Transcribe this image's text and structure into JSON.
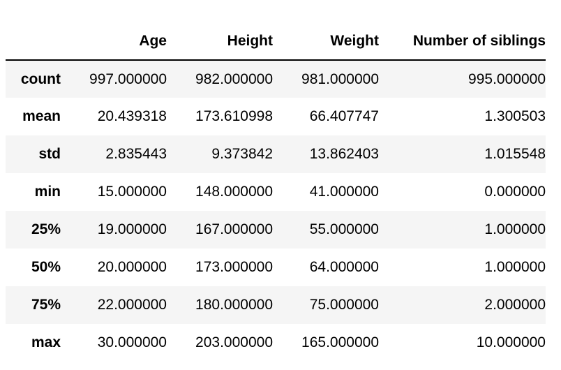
{
  "table": {
    "index_header": "",
    "columns": [
      "Age",
      "Height",
      "Weight",
      "Number of siblings"
    ],
    "rows": [
      {
        "label": "count",
        "values": [
          "997.000000",
          "982.000000",
          "981.000000",
          "995.000000"
        ]
      },
      {
        "label": "mean",
        "values": [
          "20.439318",
          "173.610998",
          "66.407747",
          "1.300503"
        ]
      },
      {
        "label": "std",
        "values": [
          "2.835443",
          "9.373842",
          "13.862403",
          "1.015548"
        ]
      },
      {
        "label": "min",
        "values": [
          "15.000000",
          "148.000000",
          "41.000000",
          "0.000000"
        ]
      },
      {
        "label": "25%",
        "values": [
          "19.000000",
          "167.000000",
          "55.000000",
          "1.000000"
        ]
      },
      {
        "label": "50%",
        "values": [
          "20.000000",
          "173.000000",
          "64.000000",
          "1.000000"
        ]
      },
      {
        "label": "75%",
        "values": [
          "22.000000",
          "180.000000",
          "75.000000",
          "2.000000"
        ]
      },
      {
        "label": "max",
        "values": [
          "30.000000",
          "203.000000",
          "165.000000",
          "10.000000"
        ]
      }
    ]
  },
  "colors": {
    "stripe": "#f5f5f5",
    "rule": "#000000",
    "text": "#000000"
  }
}
